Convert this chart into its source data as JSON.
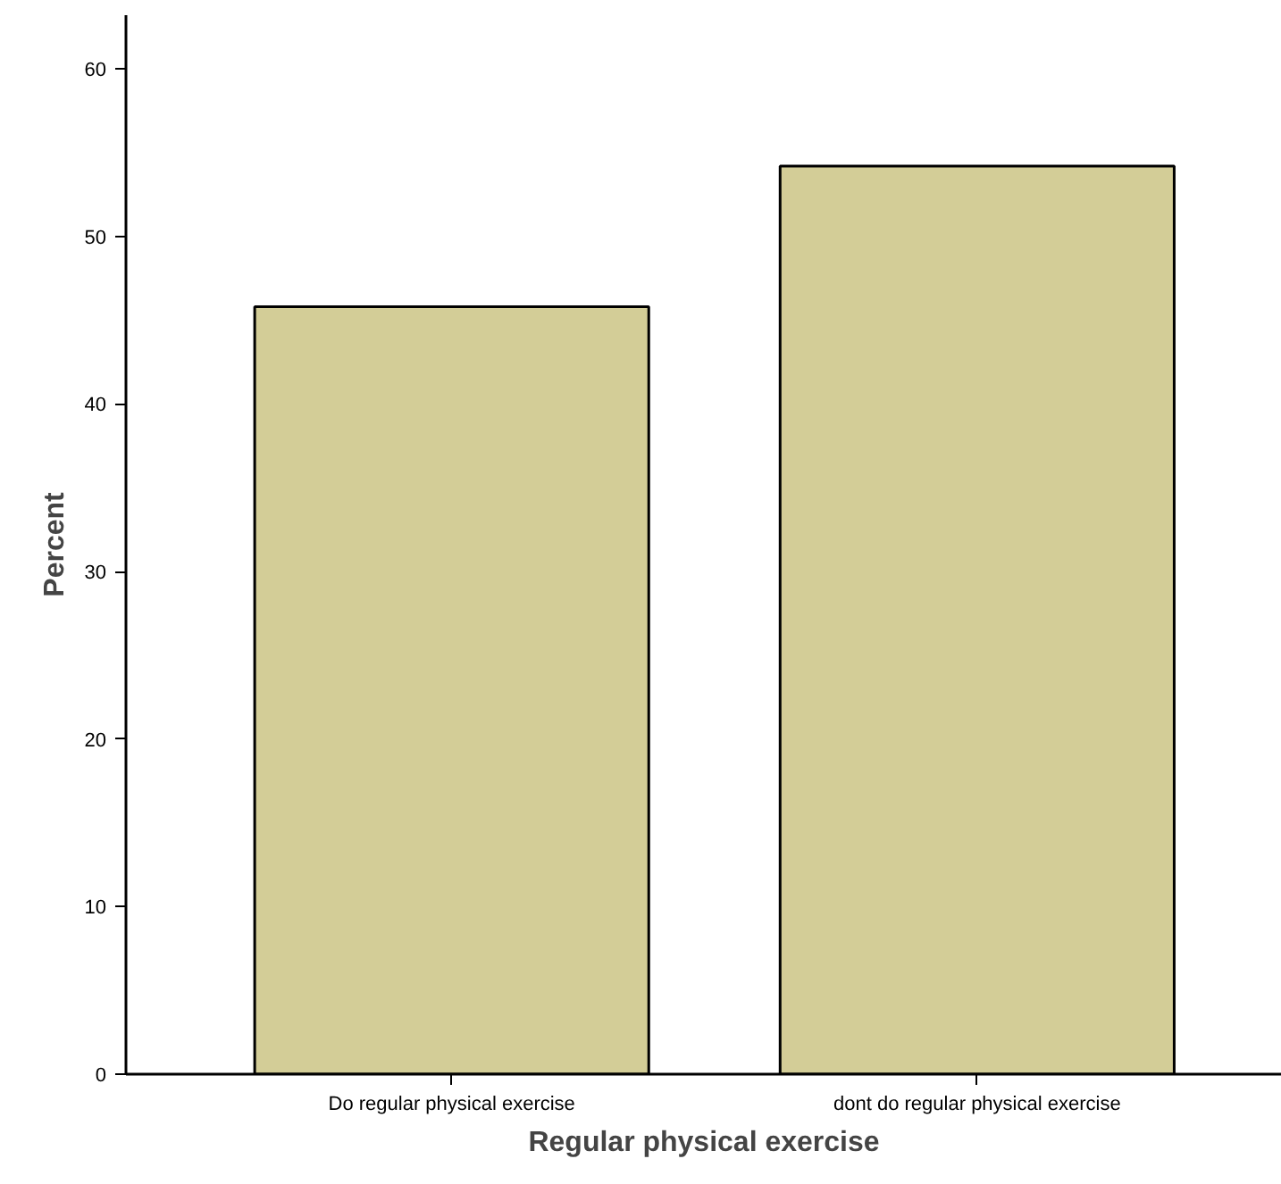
{
  "chart_data": {
    "type": "bar",
    "xlabel": "Regular physical exercise",
    "ylabel": "Percent",
    "categories": [
      "Do regular physical exercise",
      "dont do regular physical exercise"
    ],
    "values": [
      45.8,
      54.2
    ],
    "color": "#d3cd97",
    "ylim": [
      0,
      63.2
    ],
    "yticks": [
      0,
      10,
      20,
      30,
      40,
      50,
      60
    ],
    "grid": false
  }
}
